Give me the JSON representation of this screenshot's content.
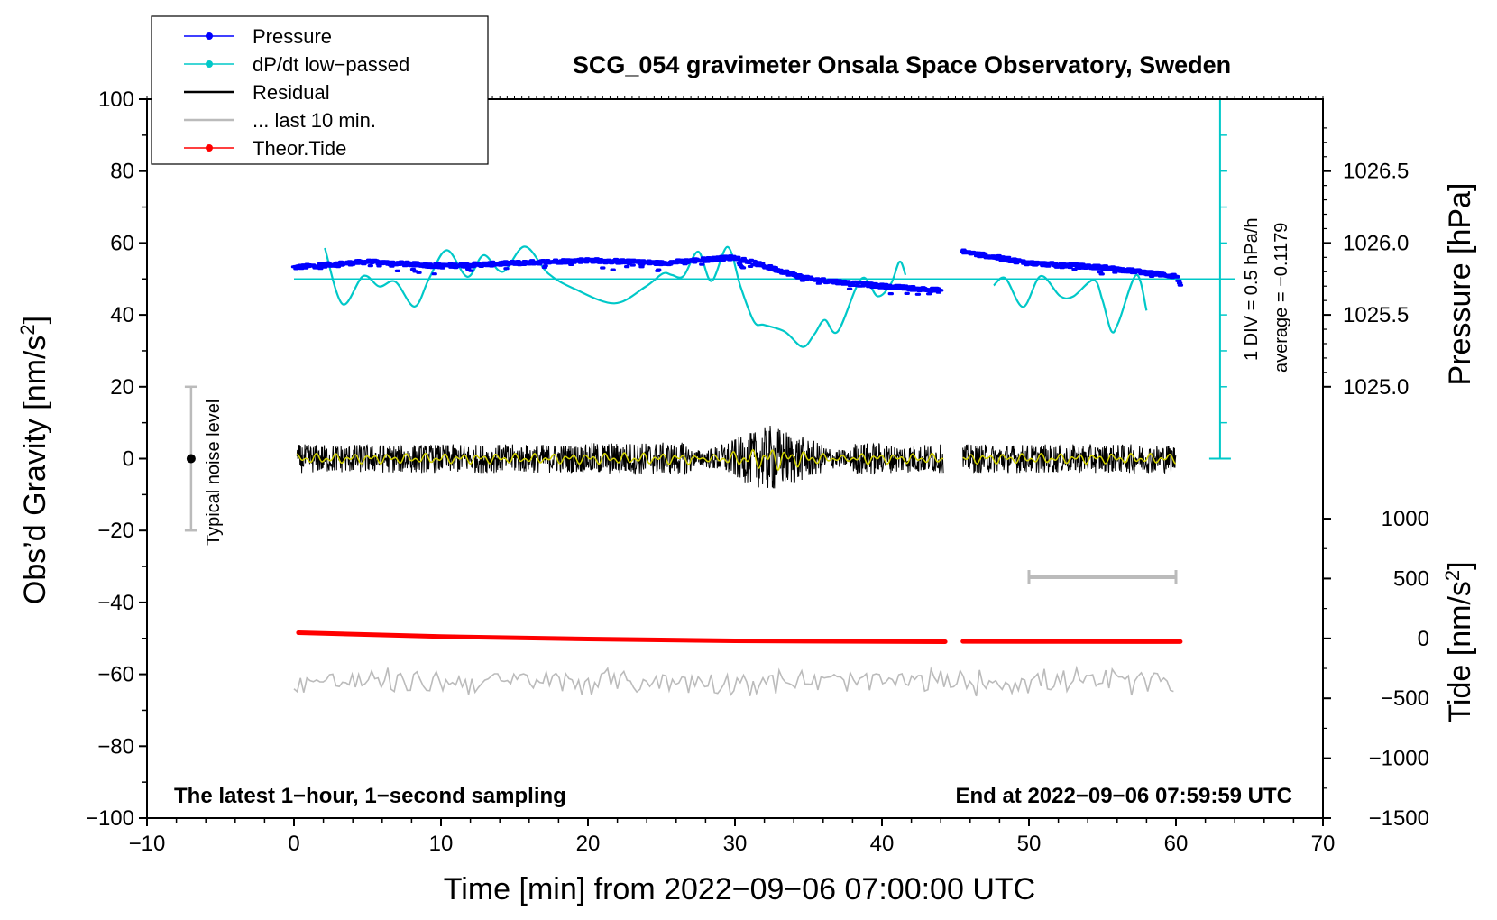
{
  "chart_data": {
    "type": "line",
    "title": "SCG_054 gravimeter Onsala Space Observatory, Sweden",
    "xlabel": "Time [min] from 2022−09−06 07:00:00 UTC",
    "ylabel_main": "Obs’d Gravity [nm/s",
    "ylabel_main_sup": "2",
    "ylabel_main_end": "]",
    "ylabel_pressure": "Pressure [hPa]",
    "ylabel_tide": "Tide [nm/s",
    "ylabel_tide_sup": "2",
    "ylabel_tide_end": "]",
    "xlim": [
      -10,
      70
    ],
    "ylim": [
      -100,
      100
    ],
    "x_ticks": [
      -10,
      0,
      10,
      20,
      30,
      40,
      50,
      60,
      70
    ],
    "x_tick_labels": [
      "−10",
      "0",
      "10",
      "20",
      "30",
      "40",
      "50",
      "60",
      "70"
    ],
    "y_ticks": [
      -100,
      -80,
      -60,
      -40,
      -20,
      0,
      20,
      40,
      60,
      80,
      100
    ],
    "y_tick_labels": [
      "−100",
      "−80",
      "−60",
      "−40",
      "−20",
      "0",
      "20",
      "40",
      "60",
      "80",
      "100"
    ],
    "pressure_axis": {
      "ticks": [
        1025.0,
        1025.5,
        1026.0,
        1026.5
      ],
      "tick_labels": [
        "1025.0",
        "1025.5",
        "1026.0",
        "1026.5"
      ],
      "map_hpa_to_main": [
        [
          1025.0,
          20
        ],
        [
          1026.5,
          80
        ]
      ]
    },
    "tide_axis": {
      "ticks": [
        -1500,
        -1000,
        -500,
        0,
        500,
        1000
      ],
      "tick_labels": [
        "−1500",
        "−1000",
        "−500",
        "0",
        "500",
        "1000"
      ],
      "map_tide_to_main": [
        [
          -1500,
          -100
        ],
        [
          1000,
          -16.7
        ]
      ]
    },
    "legend": [
      {
        "label": "Pressure",
        "color": "#0000ff",
        "marker": true
      },
      {
        "label": "dP/dt low−passed",
        "color": "#00c8c8",
        "marker": true
      },
      {
        "label": "Residual",
        "color": "#000000",
        "marker": false
      },
      {
        "label": "... last 10 min.",
        "color": "#bbbbbb",
        "marker": false
      },
      {
        "label": "Theor.Tide",
        "color": "#ff0000",
        "marker": true
      }
    ],
    "series": [
      {
        "name": "Pressure",
        "color": "#0000ff",
        "units": "hPa",
        "segments": [
          {
            "x": [
              0,
              5,
              10,
              15,
              20,
              25,
              30,
              35,
              40,
              44
            ],
            "y": [
              1025.83,
              1025.87,
              1025.84,
              1025.86,
              1025.88,
              1025.86,
              1025.9,
              1025.75,
              1025.7,
              1025.67
            ]
          },
          {
            "x": [
              45.5,
              50,
              55,
              60,
              60.3
            ],
            "y": [
              1025.94,
              1025.86,
              1025.83,
              1025.77,
              1025.72
            ]
          }
        ]
      },
      {
        "name": "dP/dt low-passed",
        "color": "#00c8c8",
        "units": "nm/s2 (display)",
        "segments": [
          {
            "x": [
              2.1,
              3.3,
              4.7,
              5.8,
              6.9,
              8.2,
              9.2,
              10.4,
              11.8,
              12.9,
              14.2,
              15.7,
              17.3,
              19.1,
              21.8,
              23.9,
              25.1,
              25.7,
              26.5,
              27.5,
              28.4,
              29.5,
              30.4,
              31.3,
              32.0,
              33.4,
              34.6,
              35.4,
              36.1,
              37.0,
              38.6,
              39.7,
              40.6,
              41.2,
              41.6
            ],
            "y": [
              58.6,
              43.0,
              50.8,
              47.9,
              49.2,
              42.3,
              50.2,
              58.0,
              50.6,
              56.6,
              52.0,
              59.0,
              51.5,
              47.2,
              43.2,
              47.8,
              51.5,
              51.1,
              50.8,
              57.6,
              49.4,
              58.9,
              47.6,
              38.1,
              37.2,
              35.3,
              31.1,
              34.6,
              38.6,
              35.4,
              50.1,
              45.2,
              48.6,
              54.8,
              51.1
            ]
          },
          {
            "x": [
              47.6,
              48.4,
              49.6,
              50.8,
              52.1,
              53.0,
              54.4,
              55.0,
              55.6,
              56.1,
              57.3,
              58.0
            ],
            "y": [
              48.2,
              50.2,
              42.2,
              50.8,
              45.3,
              45.1,
              49.7,
              44.1,
              35.5,
              38.0,
              51.1,
              41.2
            ]
          }
        ]
      },
      {
        "name": "Residual",
        "color": "#000000",
        "units": "nm/s2",
        "x_range": [
          0,
          60
        ],
        "gap": [
          44.2,
          45.5
        ],
        "amplitude_min": 1.5,
        "amplitude_max": 9.5
      },
      {
        "name": "Residual smoothed",
        "color": "#d4d400",
        "units": "nm/s2",
        "x_range": [
          0,
          60
        ]
      },
      {
        "name": "... last 10 min.",
        "color": "#bbbbbb",
        "units": "nm/s2 (display)",
        "x_range": [
          0,
          60
        ],
        "center": -62,
        "amplitude": 3
      },
      {
        "name": "Theor.Tide",
        "color": "#ff0000",
        "units": "nm/s2",
        "segments": [
          {
            "x": [
              0.3,
              10,
              20,
              30,
              44.3
            ],
            "y": [
              48,
              15,
              -5,
              -20,
              -28
            ]
          },
          {
            "x": [
              45.5,
              52,
              60.3
            ],
            "y": [
              -25,
              -26,
              -27
            ]
          }
        ]
      }
    ],
    "noise_bar": {
      "x": -7,
      "center": 0,
      "half_range": 20,
      "label": "Typical noise level"
    },
    "scale_bar": {
      "x": [
        50,
        60
      ],
      "y": -33
    },
    "annotations": {
      "div_label": "1 DIV = 0.5 hPa/h",
      "average_label": "average = −0.1179",
      "bottom_left": "The latest 1−hour, 1−second sampling",
      "bottom_right": "End at 2022−09−06 07:59:59 UTC"
    }
  }
}
